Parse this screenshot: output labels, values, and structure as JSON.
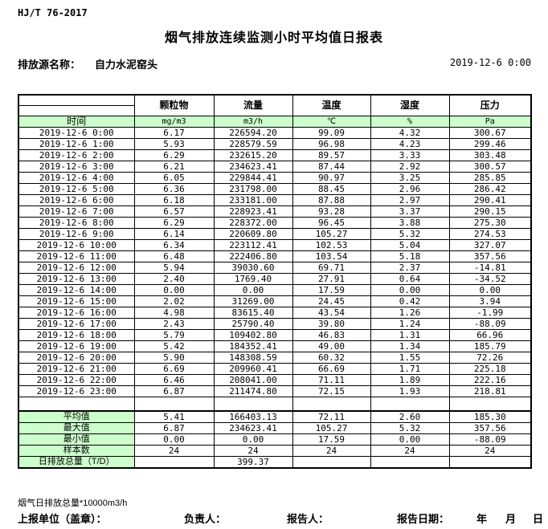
{
  "page": {
    "standard_code": "HJ/T 76-2017",
    "title": "烟气排放连续监测小时平均值日报表",
    "source_label": "排放源名称：",
    "source_name": "自力水泥窑头",
    "report_datetime": "2019-12-6 0:00"
  },
  "table": {
    "time_header": "时间",
    "columns": [
      {
        "name": "颗粒物",
        "unit": "mg/m3"
      },
      {
        "name": "流量",
        "unit": "m3/h"
      },
      {
        "name": "温度",
        "unit": "℃"
      },
      {
        "name": "湿度",
        "unit": "%"
      },
      {
        "name": "压力",
        "unit": "Pa"
      }
    ],
    "rows": [
      {
        "time": "2019-12-6 0:00",
        "values": [
          "6.17",
          "226594.20",
          "99.09",
          "4.32",
          "300.67"
        ]
      },
      {
        "time": "2019-12-6 1:00",
        "values": [
          "5.93",
          "228579.59",
          "96.98",
          "4.23",
          "299.46"
        ]
      },
      {
        "time": "2019-12-6 2:00",
        "values": [
          "6.29",
          "232615.20",
          "89.57",
          "3.33",
          "303.48"
        ]
      },
      {
        "time": "2019-12-6 3:00",
        "values": [
          "6.21",
          "234623.41",
          "87.44",
          "2.92",
          "300.57"
        ]
      },
      {
        "time": "2019-12-6 4:00",
        "values": [
          "6.05",
          "229844.41",
          "90.97",
          "3.25",
          "285.85"
        ]
      },
      {
        "time": "2019-12-6 5:00",
        "values": [
          "6.36",
          "231798.00",
          "88.45",
          "2.96",
          "286.42"
        ]
      },
      {
        "time": "2019-12-6 6:00",
        "values": [
          "6.18",
          "233181.00",
          "87.88",
          "2.97",
          "290.41"
        ]
      },
      {
        "time": "2019-12-6 7:00",
        "values": [
          "6.57",
          "228923.41",
          "93.28",
          "3.37",
          "290.15"
        ]
      },
      {
        "time": "2019-12-6 8:00",
        "values": [
          "6.29",
          "228372.00",
          "96.45",
          "3.88",
          "275.30"
        ]
      },
      {
        "time": "2019-12-6 9:00",
        "values": [
          "6.14",
          "220609.80",
          "105.27",
          "5.32",
          "274.53"
        ]
      },
      {
        "time": "2019-12-6 10:00",
        "values": [
          "6.34",
          "223112.41",
          "102.53",
          "5.04",
          "327.07"
        ]
      },
      {
        "time": "2019-12-6 11:00",
        "values": [
          "6.48",
          "222406.80",
          "103.54",
          "5.18",
          "357.56"
        ]
      },
      {
        "time": "2019-12-6 12:00",
        "values": [
          "5.94",
          "39030.60",
          "69.71",
          "2.37",
          "-14.81"
        ]
      },
      {
        "time": "2019-12-6 13:00",
        "values": [
          "2.40",
          "1769.40",
          "27.91",
          "0.64",
          "-34.52"
        ]
      },
      {
        "time": "2019-12-6 14:00",
        "values": [
          "0.00",
          "0.00",
          "17.59",
          "0.00",
          "0.00"
        ]
      },
      {
        "time": "2019-12-6 15:00",
        "values": [
          "2.02",
          "31269.00",
          "24.45",
          "0.42",
          "3.94"
        ]
      },
      {
        "time": "2019-12-6 16:00",
        "values": [
          "4.98",
          "83615.40",
          "43.54",
          "1.26",
          "-1.99"
        ]
      },
      {
        "time": "2019-12-6 17:00",
        "values": [
          "2.43",
          "25790.40",
          "39.80",
          "1.24",
          "-88.09"
        ]
      },
      {
        "time": "2019-12-6 18:00",
        "values": [
          "5.79",
          "109402.80",
          "46.83",
          "1.31",
          "66.96"
        ]
      },
      {
        "time": "2019-12-6 19:00",
        "values": [
          "5.42",
          "184352.41",
          "49.00",
          "1.34",
          "185.79"
        ]
      },
      {
        "time": "2019-12-6 20:00",
        "values": [
          "5.90",
          "148308.59",
          "60.32",
          "1.55",
          "72.26"
        ]
      },
      {
        "time": "2019-12-6 21:00",
        "values": [
          "6.69",
          "209960.41",
          "66.69",
          "1.71",
          "225.18"
        ]
      },
      {
        "time": "2019-12-6 22:00",
        "values": [
          "6.46",
          "208041.00",
          "71.11",
          "1.89",
          "222.16"
        ]
      },
      {
        "time": "2019-12-6 23:00",
        "values": [
          "6.87",
          "211474.80",
          "72.15",
          "1.93",
          "218.81"
        ]
      }
    ],
    "summary": [
      {
        "label": "平均值",
        "values": [
          "5.41",
          "166403.13",
          "72.11",
          "2.60",
          "185.30"
        ]
      },
      {
        "label": "最大值",
        "values": [
          "6.87",
          "234623.41",
          "105.27",
          "5.32",
          "357.56"
        ]
      },
      {
        "label": "最小值",
        "values": [
          "0.00",
          "0.00",
          "17.59",
          "0.00",
          "-88.09"
        ]
      },
      {
        "label": "样本数",
        "values": [
          "24",
          "24",
          "24",
          "24",
          "24"
        ]
      },
      {
        "label": "日排放总量（T/D）",
        "values": [
          "",
          "399.37",
          "",
          "",
          ""
        ]
      }
    ]
  },
  "footer": {
    "note": "烟气日排放总量*10000m3/h",
    "report_unit_label": "上报单位（盖章）：",
    "responsible_label": "负责人：",
    "reporter_label": "报告人：",
    "report_date_label": "报告日期：",
    "year_label": "年",
    "month_label": "月",
    "day_label": "日"
  },
  "colors": {
    "header_green": "#ccffcc",
    "border": "#000000",
    "background": "#ffffff"
  }
}
